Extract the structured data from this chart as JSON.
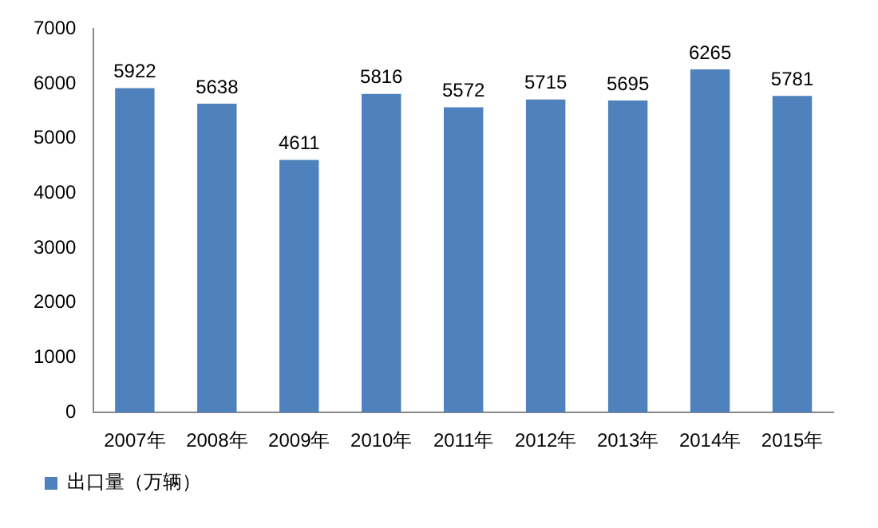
{
  "chart_data": {
    "type": "bar",
    "categories": [
      "2007年",
      "2008年",
      "2009年",
      "2010年",
      "2011年",
      "2012年",
      "2013年",
      "2014年",
      "2015年"
    ],
    "series": [
      {
        "name": "出口量（万辆）",
        "color": "#4f81bd",
        "values": [
          5922,
          5638,
          4611,
          5816,
          5572,
          5715,
          5695,
          6265,
          5781
        ]
      }
    ],
    "ylim": [
      0,
      7000
    ],
    "yticks": [
      0,
      1000,
      2000,
      3000,
      4000,
      5000,
      6000,
      7000
    ],
    "grid": false,
    "legend": "bottom left",
    "data_labels": true
  }
}
